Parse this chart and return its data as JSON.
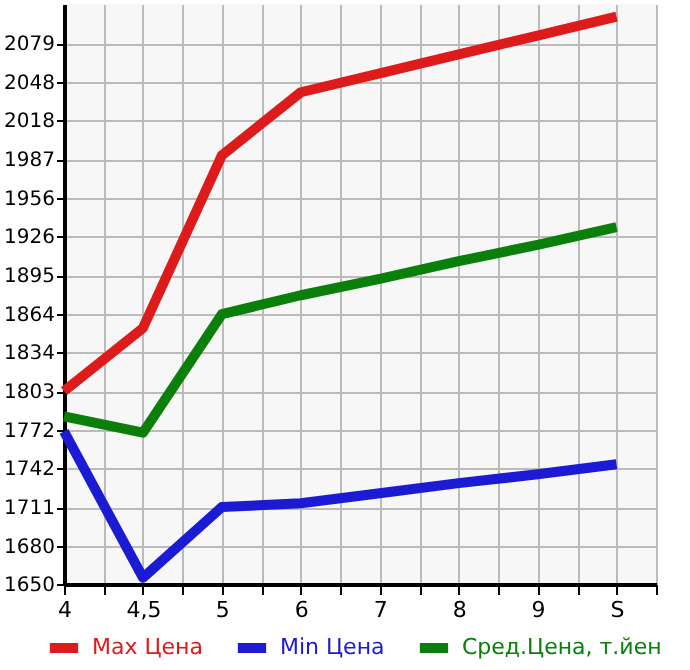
{
  "chart_data": {
    "type": "line",
    "categories": [
      "4",
      "4,5",
      "5",
      "6",
      "7",
      "8",
      "9",
      "S"
    ],
    "series": [
      {
        "name": "Max Цена",
        "color": "#dd1b1b",
        "values": [
          1803,
          1853,
          1990,
          2040,
          2055,
          2070,
          2085,
          2100
        ]
      },
      {
        "name": "Min Цена",
        "color": "#1b1bd6",
        "values": [
          1771,
          1655,
          1711,
          1714,
          1722,
          1730,
          1737,
          1745
        ]
      },
      {
        "name": "Сред.Цена, т.йен",
        "color": "#0a800a",
        "values": [
          1783,
          1770,
          1864,
          1879,
          1892,
          1906,
          1919,
          1933
        ]
      }
    ],
    "ylim": [
      1650,
      2110
    ],
    "yticks": [
      1650,
      1680,
      1711,
      1742,
      1772,
      1803,
      1834,
      1864,
      1895,
      1926,
      1956,
      1987,
      2018,
      2048,
      2079
    ],
    "grid": true,
    "legend": "bottom",
    "marker": "none",
    "line_style": "solid"
  }
}
